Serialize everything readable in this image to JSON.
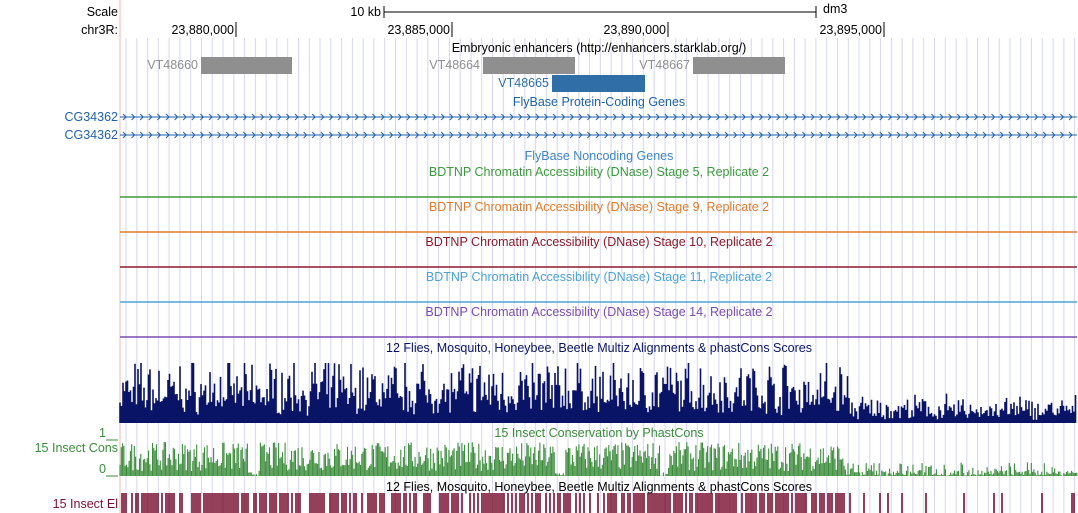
{
  "ruler": {
    "scale_label": "Scale",
    "chrom_label": "chr3R:",
    "scalebar_label": "10 kb",
    "assembly": "dm3",
    "ticks": [
      "23,880,000",
      "23,885,000",
      "23,890,000",
      "23,895,000"
    ]
  },
  "tracks": {
    "enhancers": {
      "title": "Embryonic enhancers (http://enhancers.starklab.org/)",
      "items": [
        {
          "name": "VT48660",
          "color": "#8f8f8f"
        },
        {
          "name": "VT48664",
          "color": "#8f8f8f"
        },
        {
          "name": "VT48667",
          "color": "#8f8f8f"
        },
        {
          "name": "VT48665",
          "color": "#2f6ea7"
        }
      ]
    },
    "flybase_coding": {
      "title": "FlyBase Protein-Coding Genes",
      "color": "#1f62a8",
      "genes": [
        "CG34362",
        "CG34362"
      ]
    },
    "flybase_noncoding": {
      "title": "FlyBase Noncoding Genes",
      "color": "#3d85c6"
    },
    "dnase": [
      {
        "title": "BDTNP Chromatin Accessibility (DNase) Stage 5, Replicate 2",
        "color": "#3c9a3c"
      },
      {
        "title": "BDTNP Chromatin Accessibility (DNase) Stage 9, Replicate 2",
        "color": "#e07b2a"
      },
      {
        "title": "BDTNP Chromatin Accessibility (DNase) Stage 10, Replicate 2",
        "color": "#8b1a2a"
      },
      {
        "title": "BDTNP Chromatin Accessibility (DNase) Stage 11, Replicate 2",
        "color": "#4ba3d6"
      },
      {
        "title": "BDTNP Chromatin Accessibility (DNase) Stage 14, Replicate 2",
        "color": "#7b4bb3"
      }
    ],
    "multiz_phastcons": {
      "title": "12 Flies, Mosquito, Honeybee, Beetle Multiz Alignments & phastCons Scores",
      "color": "#0a1466"
    },
    "insect_cons": {
      "title": "15 Insect Conservation by PhastCons",
      "side_label": "15 Insect Cons",
      "axis_max": "1",
      "axis_min": "0",
      "color": "#3b8c3b"
    },
    "insect_el": {
      "title": "12 Flies, Mosquito, Honeybee, Beetle Multiz Alignments & phastCons Scores",
      "side_label": "15 Insect El",
      "color": "#7a1030"
    }
  },
  "colors": {
    "grid": "#d6d6f2",
    "left_guide": "#f2b8b8",
    "ruler": "#000000"
  }
}
